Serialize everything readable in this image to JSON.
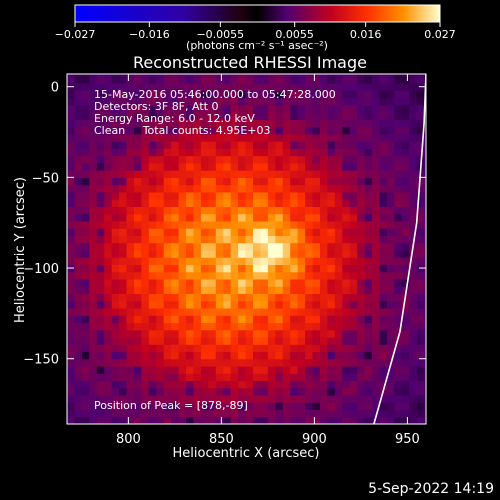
{
  "chart_data": {
    "type": "heatmap",
    "title": "Reconstructed RHESSI Image",
    "xlabel": "Heliocentric X (arcsec)",
    "ylabel": "Heliocentric Y (arcsec)",
    "xlim": [
      767,
      960
    ],
    "ylim": [
      -186,
      7
    ],
    "xticks": [
      800,
      850,
      900,
      950
    ],
    "yticks": [
      0,
      -50,
      -100,
      -150
    ],
    "colorbar": {
      "min": -0.027,
      "max": 0.027,
      "ticks": [
        -0.027,
        -0.016,
        -0.0055,
        0.0055,
        0.016,
        0.027
      ],
      "tick_labels": [
        "−0.027",
        "−0.016",
        "−0.0055",
        "0.0055",
        "0.016",
        "0.027"
      ],
      "label": "(photons cm⁻² s⁻¹ asec⁻²)"
    },
    "annotations": [
      "15-May-2016 05:46:00.000 to 05:47:28.000",
      "Detectors: 3F 8F, Att 0",
      "Energy Range: 6.0 - 12.0 keV",
      "Clean     Total counts: 4.95E+03"
    ],
    "peak_label": "Position of Peak = [878,-89]",
    "peak": [
      878,
      -89
    ],
    "source_center": [
      855,
      -95
    ],
    "limb_points": [
      [
        932,
        -186
      ],
      [
        946,
        -135
      ],
      [
        955,
        -75
      ],
      [
        959,
        -20
      ],
      [
        960,
        7
      ]
    ]
  },
  "footer_date": "5-Sep-2022 14:19"
}
